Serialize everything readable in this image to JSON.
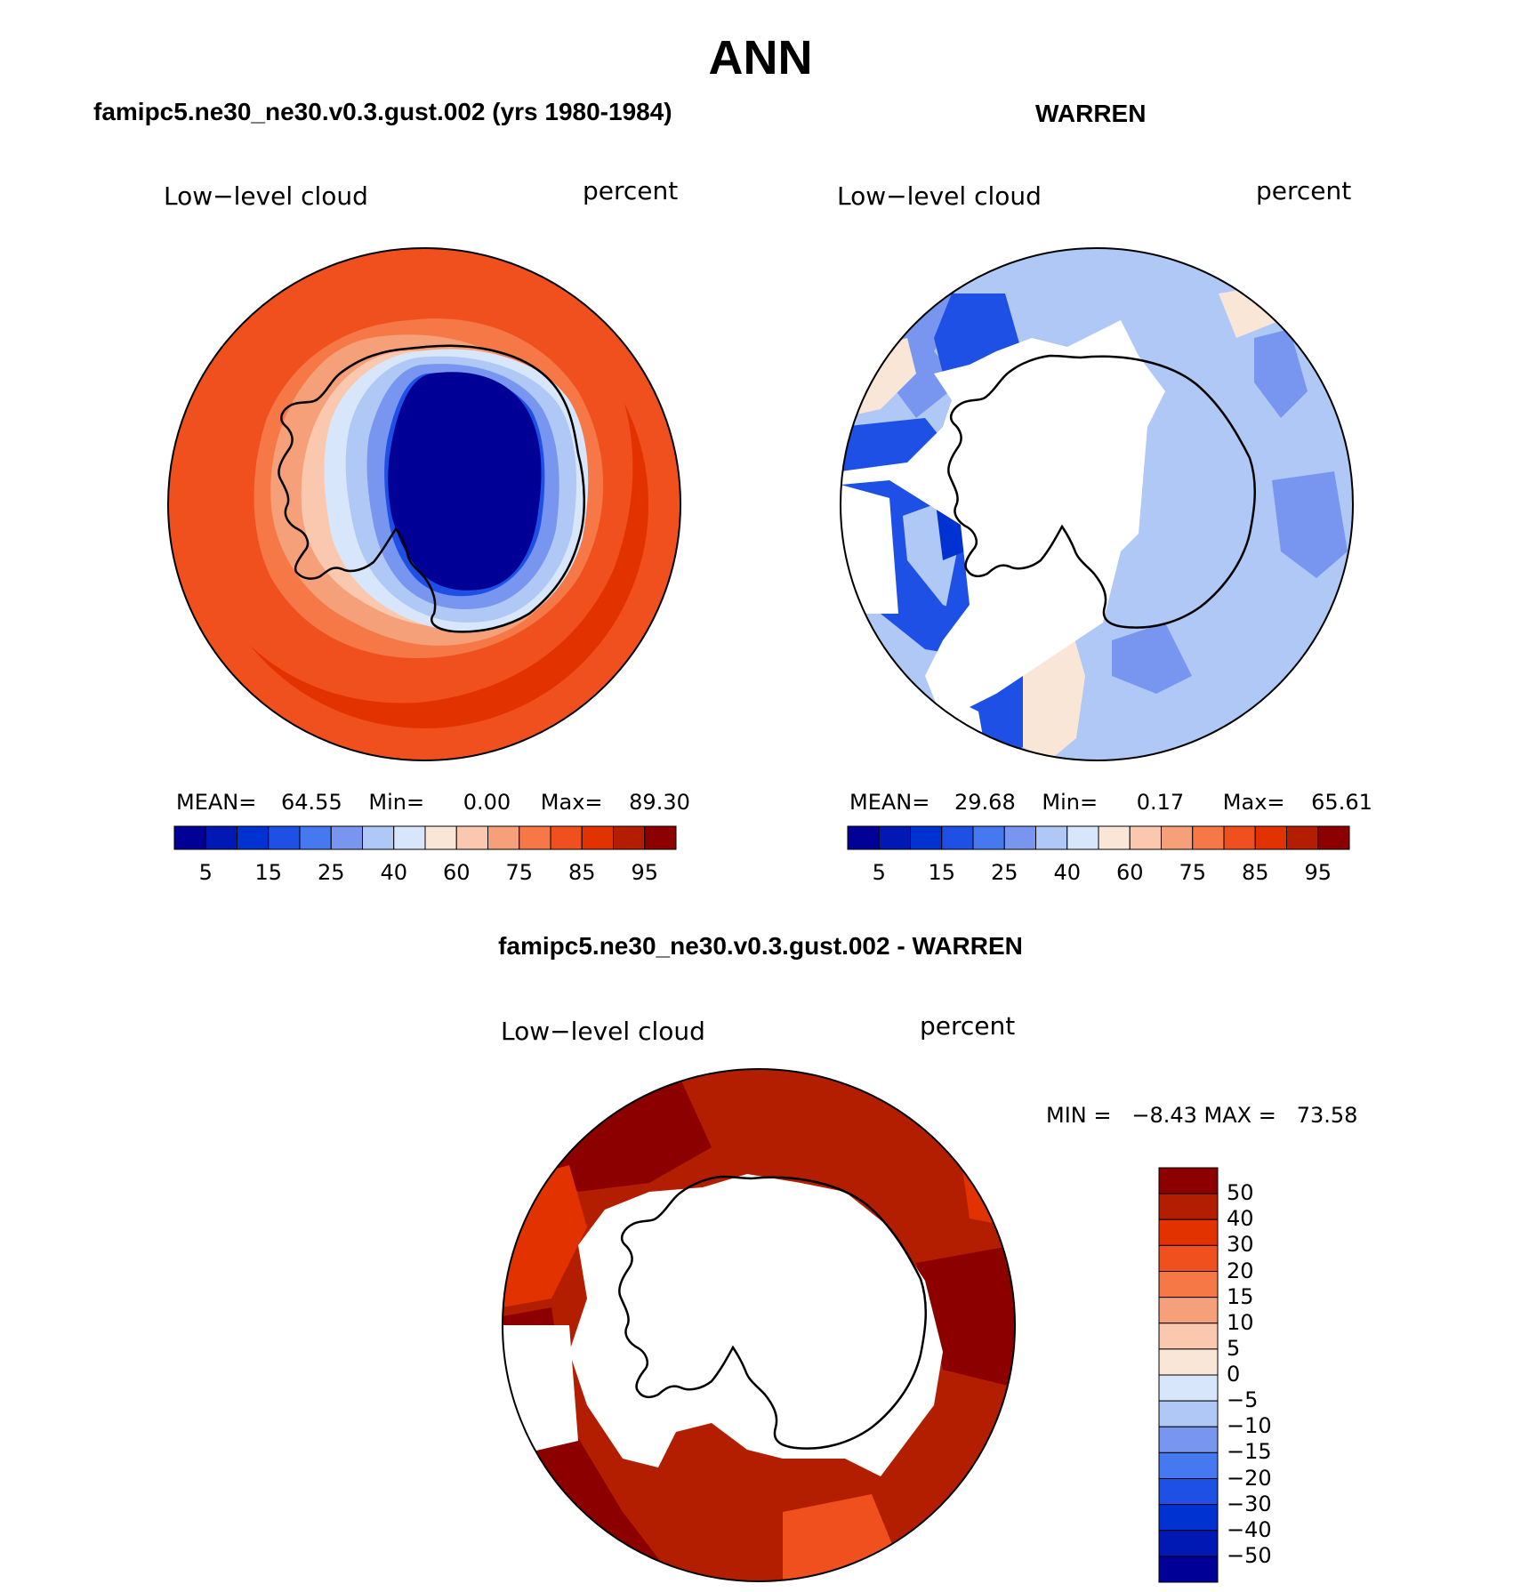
{
  "figure": {
    "title": "ANN"
  },
  "panels": {
    "model": {
      "title": "famipc5.ne30_ne30.v0.3.gust.002 (yrs 1980-1984)",
      "variable": "Low−level cloud",
      "units": "percent",
      "mean_label": "MEAN=",
      "mean": "64.55",
      "min_label": "Min=",
      "min": "0.00",
      "max_label": "Max=",
      "max": "89.30"
    },
    "obs": {
      "title": "WARREN",
      "variable": "Low−level cloud",
      "units": "percent",
      "mean_label": "MEAN=",
      "mean": "29.68",
      "min_label": "Min=",
      "min": "0.17",
      "max_label": "Max=",
      "max": "65.61"
    },
    "diff": {
      "title": "famipc5.ne30_ne30.v0.3.gust.002 - WARREN",
      "variable": "Low−level cloud",
      "units": "percent",
      "minmax_text": "MIN =   −8.43 MAX =   73.58"
    }
  },
  "colorbars": {
    "abs": {
      "colors": [
        "#000096",
        "#0019b4",
        "#0032d2",
        "#1e50e6",
        "#4678f0",
        "#7896f0",
        "#afc8f5",
        "#d7e6fa",
        "#fae6d7",
        "#fac8af",
        "#f5a078",
        "#f57846",
        "#f0501e",
        "#e13200",
        "#b41e00",
        "#8c0000"
      ],
      "tick_labels": [
        "5",
        "15",
        "25",
        "40",
        "60",
        "75",
        "85",
        "95"
      ]
    },
    "diff": {
      "colors": [
        "#8c0000",
        "#b41e00",
        "#e13200",
        "#f0501e",
        "#f57846",
        "#f5a078",
        "#fac8af",
        "#fae6d7",
        "#d7e6fa",
        "#afc8f5",
        "#7896f0",
        "#4678f0",
        "#1e50e6",
        "#0032d2",
        "#0019b4",
        "#000096"
      ],
      "tick_labels": [
        "50",
        "40",
        "30",
        "20",
        "15",
        "10",
        "5",
        "0",
        "−5",
        "−10",
        "−15",
        "−20",
        "−30",
        "−40",
        "−50"
      ]
    }
  }
}
